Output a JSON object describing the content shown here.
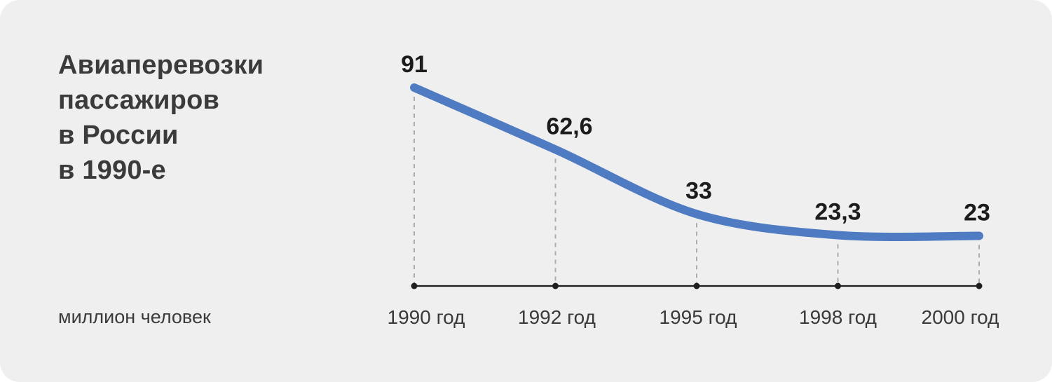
{
  "title": {
    "text": "Авиаперевозки пассажиров в России в 1990-е",
    "lines": [
      "Авиаперевозки",
      "пассажиров",
      "в России",
      "в 1990-е"
    ]
  },
  "unit_label": "миллион человек",
  "chart_data": {
    "type": "line",
    "title": "Авиаперевозки пассажиров в России в 1990-е",
    "categories": [
      "1990 год",
      "1992 год",
      "1995 год",
      "1998 год",
      "2000 год"
    ],
    "values": [
      91,
      62.6,
      33,
      23.3,
      23
    ],
    "value_labels": [
      "91",
      "62,6",
      "33",
      "23,3",
      "23"
    ],
    "xlabel": "",
    "ylabel": "миллион человек",
    "ylim": [
      0,
      100
    ],
    "grid": "vertical dashed drop lines from each point to baseline",
    "legend": "none",
    "colors": {
      "line": "#4e7bc1",
      "axis": "#1f1f1f",
      "drop_line": "#acacac",
      "value_label": "#1c1c1c",
      "axis_label": "#3a3a3a",
      "panel_background": "#efefef",
      "page_background": "#ffffff",
      "title": "#3b3b3b"
    }
  }
}
